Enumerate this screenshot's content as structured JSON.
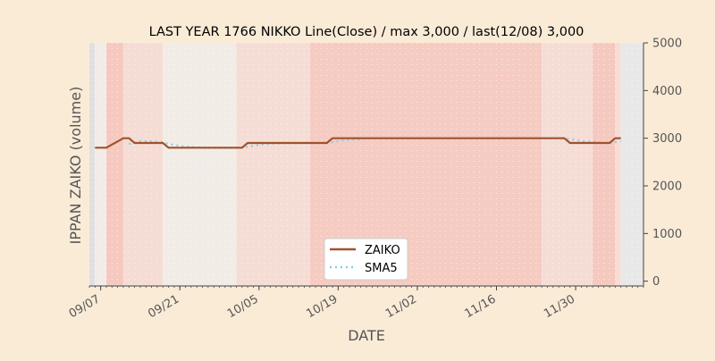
{
  "chart_data": {
    "type": "line",
    "title": "LAST YEAR 1766 NIKKO Line(Close) / max 3,000 / last(12/08) 3,000",
    "xlabel": "DATE",
    "ylabel": "IPPAN ZAIKO (volume)",
    "ylim": [
      -100,
      5000
    ],
    "xlim": [
      "2023-09-05",
      "2023-12-12"
    ],
    "y_ticks": [
      0,
      1000,
      2000,
      3000,
      4000,
      5000
    ],
    "y_tick_labels": [
      "0",
      "1000",
      "2000",
      "3000",
      "4000",
      "5000"
    ],
    "y_axis_side": "right",
    "x_ticks": [
      "2023-09-07",
      "2023-09-21",
      "2023-10-05",
      "2023-10-19",
      "2023-11-02",
      "2023-11-16",
      "2023-11-30"
    ],
    "x_tick_labels": [
      "09/07",
      "09/21",
      "10/05",
      "10/19",
      "11/02",
      "11/16",
      "11/30"
    ],
    "x_tick_rotation_deg": 30,
    "grid": true,
    "legend_position": "bottom-center",
    "colors": {
      "background": "#faebd7",
      "plot_background": "#ffffff",
      "zaiko": "#a0522d",
      "sma5": "#87ceeb",
      "axis": "#444444",
      "tick_text": "#555555",
      "title_text": "#000000"
    },
    "series": [
      {
        "name": "ZAIKO",
        "style": "solid",
        "x": [
          "2023-09-06",
          "2023-09-07",
          "2023-09-08",
          "2023-09-11",
          "2023-09-12",
          "2023-09-13",
          "2023-09-14",
          "2023-09-15",
          "2023-09-18",
          "2023-09-19",
          "2023-09-20",
          "2023-09-21",
          "2023-09-22",
          "2023-09-25",
          "2023-09-26",
          "2023-09-27",
          "2023-09-28",
          "2023-09-29",
          "2023-10-02",
          "2023-10-03",
          "2023-10-04",
          "2023-10-05",
          "2023-10-06",
          "2023-10-09",
          "2023-10-10",
          "2023-10-11",
          "2023-10-12",
          "2023-10-13",
          "2023-10-16",
          "2023-10-17",
          "2023-10-18",
          "2023-10-19",
          "2023-10-20",
          "2023-10-23",
          "2023-10-24",
          "2023-10-25",
          "2023-10-26",
          "2023-10-27",
          "2023-10-30",
          "2023-10-31",
          "2023-11-01",
          "2023-11-02",
          "2023-11-03",
          "2023-11-06",
          "2023-11-07",
          "2023-11-08",
          "2023-11-09",
          "2023-11-10",
          "2023-11-13",
          "2023-11-14",
          "2023-11-15",
          "2023-11-16",
          "2023-11-17",
          "2023-11-20",
          "2023-11-21",
          "2023-11-22",
          "2023-11-23",
          "2023-11-24",
          "2023-11-27",
          "2023-11-28",
          "2023-11-29",
          "2023-11-30",
          "2023-12-01",
          "2023-12-04",
          "2023-12-05",
          "2023-12-06",
          "2023-12-07",
          "2023-12-08"
        ],
        "y": [
          2800,
          2800,
          2800,
          3000,
          3000,
          2900,
          2900,
          2900,
          2900,
          2800,
          2800,
          2800,
          2800,
          2800,
          2800,
          2800,
          2800,
          2800,
          2800,
          2900,
          2900,
          2900,
          2900,
          2900,
          2900,
          2900,
          2900,
          2900,
          2900,
          2900,
          3000,
          3000,
          3000,
          3000,
          3000,
          3000,
          3000,
          3000,
          3000,
          3000,
          3000,
          3000,
          3000,
          3000,
          3000,
          3000,
          3000,
          3000,
          3000,
          3000,
          3000,
          3000,
          3000,
          3000,
          3000,
          3000,
          3000,
          3000,
          3000,
          3000,
          2900,
          2900,
          2900,
          2900,
          2900,
          2900,
          3000,
          3000
        ]
      },
      {
        "name": "SMA5",
        "style": "dotted",
        "x": [
          "2023-09-12",
          "2023-09-13",
          "2023-09-14",
          "2023-09-15",
          "2023-09-18",
          "2023-09-19",
          "2023-09-20",
          "2023-09-21",
          "2023-09-22",
          "2023-09-25",
          "2023-09-26",
          "2023-09-27",
          "2023-09-28",
          "2023-09-29",
          "2023-10-02",
          "2023-10-03",
          "2023-10-04",
          "2023-10-05",
          "2023-10-06",
          "2023-10-09",
          "2023-10-10",
          "2023-10-11",
          "2023-10-12",
          "2023-10-13",
          "2023-10-16",
          "2023-10-17",
          "2023-10-18",
          "2023-10-19",
          "2023-10-20",
          "2023-10-23",
          "2023-10-24",
          "2023-10-25",
          "2023-10-26",
          "2023-10-27",
          "2023-10-30",
          "2023-10-31",
          "2023-11-01",
          "2023-11-02",
          "2023-11-03",
          "2023-11-06",
          "2023-11-07",
          "2023-11-08",
          "2023-11-09",
          "2023-11-10",
          "2023-11-13",
          "2023-11-14",
          "2023-11-15",
          "2023-11-16",
          "2023-11-17",
          "2023-11-20",
          "2023-11-21",
          "2023-11-22",
          "2023-11-23",
          "2023-11-24",
          "2023-11-27",
          "2023-11-28",
          "2023-11-29",
          "2023-11-30",
          "2023-12-01",
          "2023-12-04",
          "2023-12-05",
          "2023-12-06",
          "2023-12-07",
          "2023-12-08"
        ],
        "y": [
          2880,
          2900,
          2940,
          2940,
          2920,
          2880,
          2860,
          2840,
          2820,
          2800,
          2800,
          2800,
          2800,
          2800,
          2800,
          2820,
          2840,
          2860,
          2880,
          2900,
          2900,
          2900,
          2900,
          2900,
          2900,
          2900,
          2920,
          2940,
          2960,
          2980,
          3000,
          3000,
          3000,
          3000,
          3000,
          3000,
          3000,
          3000,
          3000,
          3000,
          3000,
          3000,
          3000,
          3000,
          3000,
          3000,
          3000,
          3000,
          3000,
          3000,
          3000,
          3000,
          3000,
          3000,
          3000,
          3000,
          2980,
          2960,
          2940,
          2920,
          2900,
          2900,
          2920,
          2940
        ]
      }
    ],
    "background_bands": [
      {
        "start": "2023-09-05",
        "end": "2023-09-06",
        "color": "#e0e0e0"
      },
      {
        "start": "2023-09-06",
        "end": "2023-09-08",
        "color": "#f2ece8"
      },
      {
        "start": "2023-09-08",
        "end": "2023-09-11",
        "color": "#f5c9bf"
      },
      {
        "start": "2023-09-11",
        "end": "2023-09-18",
        "color": "#f5dcd4"
      },
      {
        "start": "2023-09-18",
        "end": "2023-10-01",
        "color": "#f2ece6"
      },
      {
        "start": "2023-10-01",
        "end": "2023-10-14",
        "color": "#f5ddd5"
      },
      {
        "start": "2023-10-14",
        "end": "2023-11-24",
        "color": "#f5cbc2"
      },
      {
        "start": "2023-11-24",
        "end": "2023-12-03",
        "color": "#f5ddd6"
      },
      {
        "start": "2023-12-03",
        "end": "2023-12-07",
        "color": "#f5c9bf"
      },
      {
        "start": "2023-12-07",
        "end": "2023-12-08",
        "color": "#f7dcd4"
      },
      {
        "start": "2023-12-08",
        "end": "2023-12-12",
        "color": "#e8e8e8"
      }
    ]
  }
}
